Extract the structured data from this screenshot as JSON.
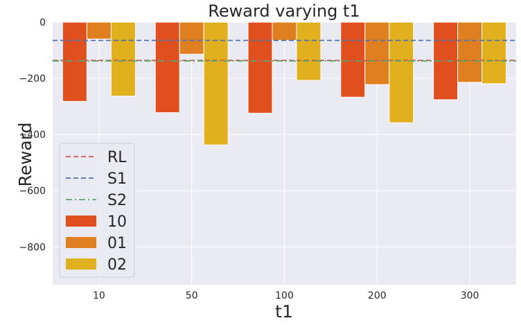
{
  "chart_data": {
    "type": "bar",
    "title": "Reward varying t1",
    "xlabel": "t1",
    "ylabel": "Reward",
    "categories": [
      "10",
      "50",
      "100",
      "200",
      "300"
    ],
    "ylim": [
      -935,
      0
    ],
    "yticks": [
      0,
      -200,
      -400,
      -600,
      -800
    ],
    "ytick_labels": [
      "0",
      "−200",
      "−400",
      "−600",
      "−800"
    ],
    "grid": true,
    "legend_position": "lower left",
    "series": [
      {
        "name": "10",
        "color": "#e0501f",
        "values": [
          -282,
          -322,
          -324,
          -267,
          -276
        ]
      },
      {
        "name": "01",
        "color": "#e07f1f",
        "values": [
          -60,
          -114,
          -65,
          -222,
          -214
        ]
      },
      {
        "name": "02",
        "color": "#e0b01f",
        "values": [
          -263,
          -437,
          -207,
          -358,
          -219
        ]
      }
    ],
    "reference_lines": [
      {
        "name": "RL",
        "value": -136,
        "color": "#d9534f",
        "style": "dashed"
      },
      {
        "name": "S1",
        "value": -65,
        "color": "#4c72b0",
        "style": "dashed"
      },
      {
        "name": "S2",
        "value": -138,
        "color": "#55a868",
        "style": "dashdot"
      }
    ]
  }
}
